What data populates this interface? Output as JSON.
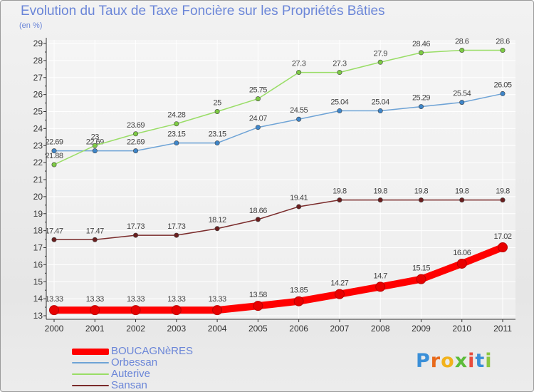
{
  "chart_data": {
    "type": "line",
    "title": "Evolution du Taux de Taxe Foncière sur les Propriétés Bâties",
    "subtitle": "(en %)",
    "categories": [
      "2000",
      "2001",
      "2002",
      "2003",
      "2004",
      "2005",
      "2006",
      "2007",
      "2008",
      "2009",
      "2010",
      "2011"
    ],
    "ylim": [
      13,
      29
    ],
    "yticks": [
      "13",
      "14",
      "15",
      "16",
      "17",
      "18",
      "19",
      "20",
      "21",
      "22",
      "23",
      "24",
      "25",
      "26",
      "27",
      "28",
      "29"
    ],
    "grid": true,
    "legend_position": "bottom-left",
    "series": [
      {
        "name": "BOUCAGNèRES",
        "color": "#ff0000",
        "point_color": "#e80000",
        "values": [
          13.33,
          13.33,
          13.33,
          13.33,
          13.33,
          13.58,
          13.85,
          14.27,
          14.7,
          15.15,
          16.06,
          17.02
        ],
        "labels": [
          "13.33",
          "13.33",
          "13.33",
          "13.33",
          "13.33",
          "13.58",
          "13.85",
          "14.27",
          "14.7",
          "15.15",
          "16.06",
          "17.02"
        ]
      },
      {
        "name": "Orbessan",
        "color": "#6ea3d6",
        "point_color": "#3f86c9",
        "values": [
          22.69,
          22.69,
          22.69,
          23.15,
          23.15,
          24.07,
          24.55,
          25.04,
          25.04,
          25.29,
          25.54,
          26.05
        ],
        "labels": [
          "22.69",
          "22.69",
          "22.69",
          "23.15",
          "23.15",
          "24.07",
          "24.55",
          "25.04",
          "25.04",
          "25.29",
          "25.54",
          "26.05"
        ]
      },
      {
        "name": "Auterive",
        "color": "#99dd66",
        "point_color": "#7ecb45",
        "values": [
          21.88,
          23,
          23.69,
          24.28,
          25,
          25.75,
          27.3,
          27.3,
          27.9,
          28.46,
          28.6,
          28.6
        ],
        "labels": [
          "21.88",
          "23",
          "23.69",
          "24.28",
          "25",
          "25.75",
          "27.3",
          "27.3",
          "27.9",
          "28.46",
          "28.6",
          "28.6"
        ]
      },
      {
        "name": "Sansan",
        "color": "#7a2b2b",
        "point_color": "#6a1f1f",
        "values": [
          17.47,
          17.47,
          17.73,
          17.73,
          18.12,
          18.66,
          19.41,
          19.8,
          19.8,
          19.8,
          19.8,
          19.8
        ],
        "labels": [
          "17.47",
          "17.47",
          "17.73",
          "17.73",
          "18.12",
          "18.66",
          "19.41",
          "19.8",
          "19.8",
          "19.8",
          "19.8",
          "19.8"
        ]
      }
    ]
  },
  "brand": {
    "logo_text": "Proxiti",
    "letter_colors": [
      "#3a8fd8",
      "#e86a1c",
      "#f2b21c",
      "#5cbc3a",
      "#e84c3d",
      "#3a8fd8",
      "#8cc63f"
    ]
  }
}
